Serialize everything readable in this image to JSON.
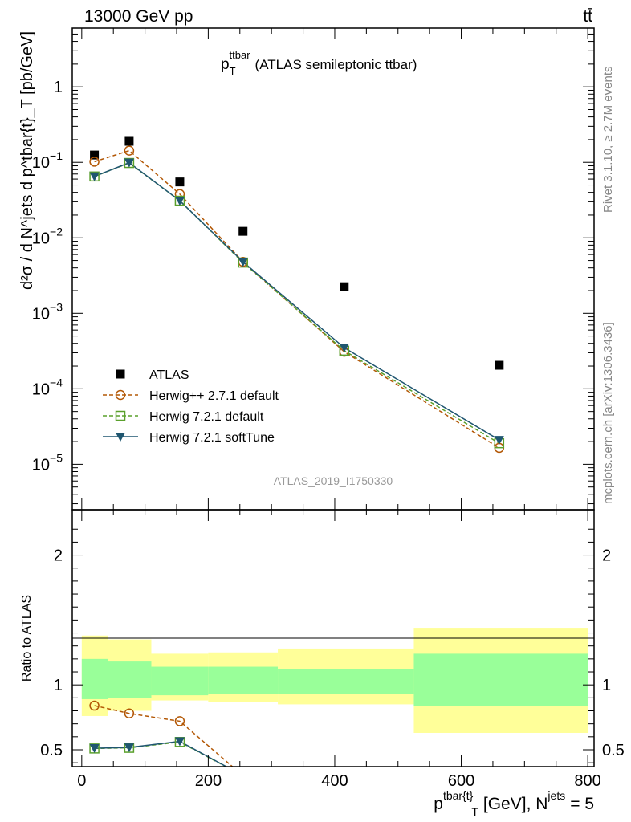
{
  "header": {
    "left": "13000 GeV pp",
    "right": "tt̄"
  },
  "side_text": {
    "rivet": "Rivet 3.1.10, ≥ 2.7M events",
    "mcplots": "mcplots.cern.ch [arXiv:1306.3436]"
  },
  "watermark": "ATLAS_2019_I1750330",
  "chart_data": [
    {
      "type": "scatter",
      "title_main": "p",
      "title_sup": "ttbar",
      "title_sub": "T",
      "title_rest": "(ATLAS semileptonic ttbar)",
      "ylabel": "d²σ / d N^jets d p^tbar{t}_T [pb/GeV]",
      "yscale": "log",
      "ylim": [
        2.5e-06,
        6
      ],
      "xlim": [
        -15,
        810
      ],
      "yticks": [
        {
          "value": 1,
          "base": "1",
          "exp": ""
        },
        {
          "value": 0.1,
          "base": "10",
          "exp": "−1"
        },
        {
          "value": 0.01,
          "base": "10",
          "exp": "−2"
        },
        {
          "value": 0.001,
          "base": "10",
          "exp": "−3"
        },
        {
          "value": 0.0001,
          "base": "10",
          "exp": "−4"
        },
        {
          "value": 1e-05,
          "base": "10",
          "exp": "−5"
        }
      ],
      "legend_position": "bottom-left",
      "x": [
        20,
        75,
        155,
        255,
        415,
        660
      ],
      "series": [
        {
          "name": "ATLAS",
          "marker": "filled-square",
          "color": "#000000",
          "line": "none",
          "values": [
            0.125,
            0.19,
            0.055,
            0.0122,
            0.00225,
            0.000205
          ]
        },
        {
          "name": "Herwig++ 2.7.1 default",
          "marker": "open-circle",
          "color": "#b35806",
          "line": "dashed",
          "values": [
            0.102,
            0.143,
            0.038,
            0.0048,
            0.00031,
            1.65e-05
          ]
        },
        {
          "name": "Herwig 7.2.1 default",
          "marker": "open-square",
          "color": "#5aa02c",
          "line": "dashed",
          "values": [
            0.065,
            0.098,
            0.031,
            0.0047,
            0.00032,
            1.9e-05
          ]
        },
        {
          "name": "Herwig 7.2.1 softTune",
          "marker": "filled-triangle-down",
          "color": "#1f5670",
          "line": "solid",
          "values": [
            0.065,
            0.099,
            0.031,
            0.0048,
            0.00035,
            2.1e-05
          ]
        }
      ]
    },
    {
      "type": "scatter",
      "ylabel": "Ratio to ATLAS",
      "xlabel_main": "p",
      "xlabel_sup": "tbar{t}",
      "xlabel_sub": "T",
      "xlabel_rest": "[GeV], N",
      "xlabel_sup2": "jets",
      "xlabel_tail": "= 5",
      "ylim": [
        0.37,
        2.35
      ],
      "xlim": [
        -15,
        810
      ],
      "yticks": [
        0.5,
        1,
        2
      ],
      "xticks": [
        0,
        200,
        400,
        600,
        800
      ],
      "bins": [
        {
          "lo": 0,
          "hi": 42,
          "band_inner": [
            0.89,
            1.2
          ],
          "band_outer": [
            0.76,
            1.38
          ]
        },
        {
          "lo": 42,
          "hi": 110,
          "band_inner": [
            0.9,
            1.18
          ],
          "band_outer": [
            0.8,
            1.35
          ]
        },
        {
          "lo": 110,
          "hi": 200,
          "band_inner": [
            0.92,
            1.14
          ],
          "band_outer": [
            0.88,
            1.24
          ]
        },
        {
          "lo": 200,
          "hi": 310,
          "band_inner": [
            0.93,
            1.14
          ],
          "band_outer": [
            0.87,
            1.25
          ]
        },
        {
          "lo": 310,
          "hi": 525,
          "band_inner": [
            0.93,
            1.12
          ],
          "band_outer": [
            0.85,
            1.28
          ]
        },
        {
          "lo": 525,
          "hi": 800,
          "band_inner": [
            0.84,
            1.24
          ],
          "band_outer": [
            0.63,
            1.44
          ]
        }
      ],
      "x": [
        20,
        75,
        155,
        255
      ],
      "series": [
        {
          "name": "Herwig++ 2.7.1 default",
          "color": "#b35806",
          "marker": "open-circle",
          "line": "dashed",
          "values": [
            0.84,
            0.78,
            0.72,
            0.3
          ]
        },
        {
          "name": "Herwig 7.2.1 default",
          "color": "#5aa02c",
          "marker": "open-square",
          "line": "dashed",
          "values": [
            0.51,
            0.515,
            0.56,
            0.3
          ]
        },
        {
          "name": "Herwig 7.2.1 softTune",
          "color": "#1f5670",
          "marker": "filled-triangle-down",
          "line": "solid",
          "values": [
            0.512,
            0.518,
            0.565,
            0.3
          ]
        }
      ]
    }
  ]
}
